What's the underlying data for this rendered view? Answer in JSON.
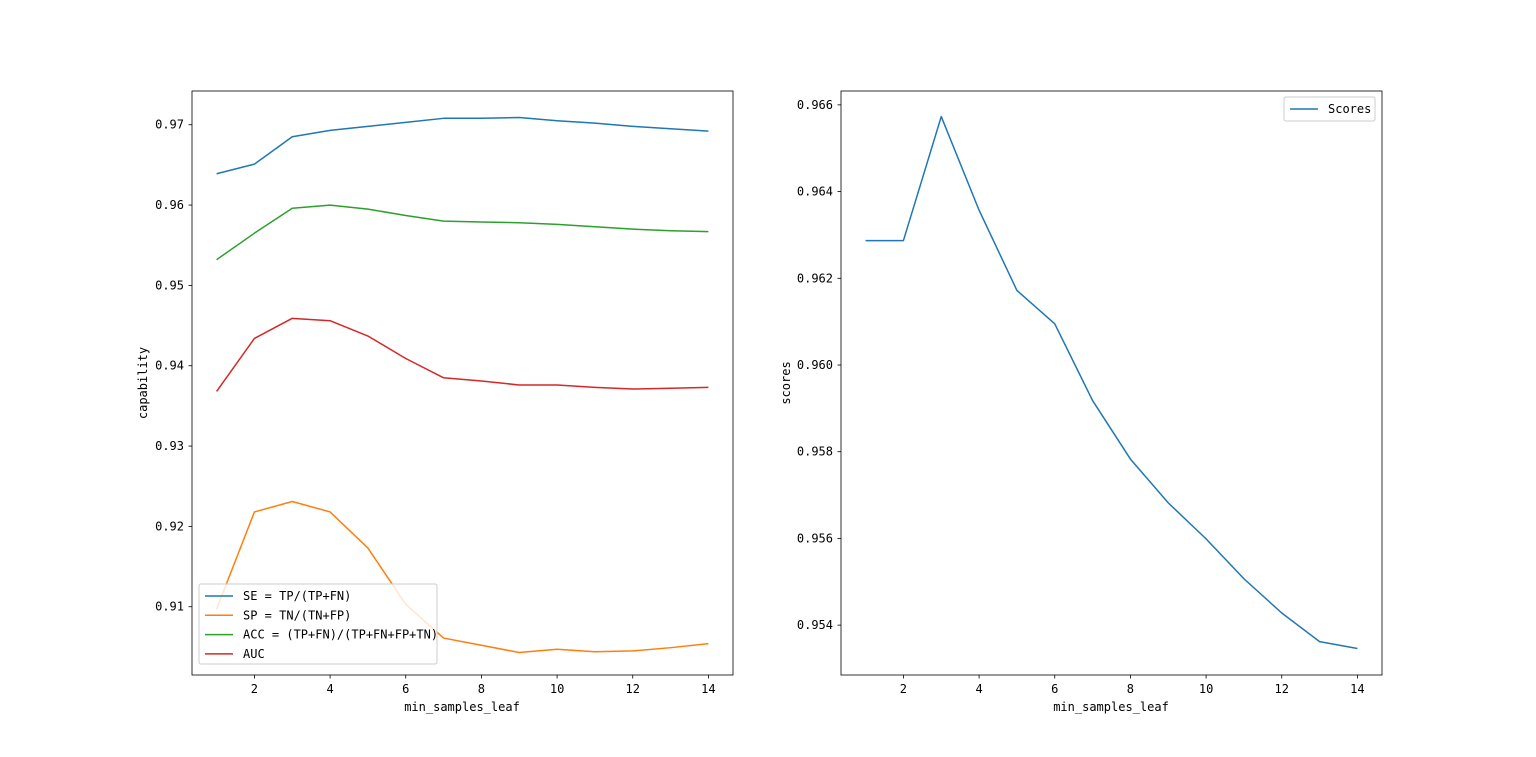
{
  "chart_data": [
    {
      "type": "line",
      "xlabel": "min_samples_leaf",
      "ylabel": "capability",
      "xlim": [
        0.35,
        14.65
      ],
      "ylim": [
        0.9015,
        0.9742
      ],
      "xticks": [
        2,
        4,
        6,
        8,
        10,
        12,
        14
      ],
      "yticks": [
        0.91,
        0.92,
        0.93,
        0.94,
        0.95,
        0.96,
        0.97
      ],
      "ytick_labels": [
        "0.91",
        "0.92",
        "0.93",
        "0.94",
        "0.95",
        "0.96",
        "0.97"
      ],
      "grid": false,
      "legend": "lower-left",
      "x": [
        1,
        2,
        3,
        4,
        5,
        6,
        7,
        8,
        9,
        10,
        11,
        12,
        13,
        14
      ],
      "series": [
        {
          "name": "SE = TP/(TP+FN)",
          "color": "#1f77b4",
          "values": [
            0.9639,
            0.9651,
            0.9685,
            0.9693,
            0.9698,
            0.9703,
            0.9708,
            0.9708,
            0.9709,
            0.9705,
            0.9702,
            0.9698,
            0.9695,
            0.9692
          ]
        },
        {
          "name": "SP = TN/(TN+FP)",
          "color": "#ff7f0e",
          "values": [
            0.9097,
            0.9218,
            0.9231,
            0.9218,
            0.9173,
            0.9103,
            0.9061,
            0.9052,
            0.9043,
            0.9047,
            0.9044,
            0.9045,
            0.9049,
            0.9054
          ]
        },
        {
          "name": "ACC = (TP+FN)/(TP+FN+FP+TN)",
          "color": "#2ca02c",
          "values": [
            0.9532,
            0.9565,
            0.9596,
            0.96,
            0.9595,
            0.9587,
            0.958,
            0.9579,
            0.9578,
            0.9576,
            0.9573,
            0.957,
            0.9568,
            0.9567
          ]
        },
        {
          "name": "AUC",
          "color": "#d62728",
          "values": [
            0.9368,
            0.9434,
            0.9459,
            0.9456,
            0.9437,
            0.9409,
            0.9385,
            0.9381,
            0.9376,
            0.9376,
            0.9373,
            0.9371,
            0.9372,
            0.9373
          ]
        }
      ]
    },
    {
      "type": "line",
      "xlabel": "min_samples_leaf",
      "ylabel": "scores",
      "xlim": [
        0.35,
        14.65
      ],
      "ylim": [
        0.95285,
        0.96632
      ],
      "xticks": [
        2,
        4,
        6,
        8,
        10,
        12,
        14
      ],
      "yticks": [
        0.954,
        0.956,
        0.958,
        0.96,
        0.962,
        0.964,
        0.966
      ],
      "ytick_labels": [
        "0.954",
        "0.956",
        "0.958",
        "0.960",
        "0.962",
        "0.964",
        "0.966"
      ],
      "grid": false,
      "legend": "top-right",
      "x": [
        1,
        2,
        3,
        4,
        5,
        6,
        7,
        8,
        9,
        10,
        11,
        12,
        13,
        14
      ],
      "series": [
        {
          "name": "Scores",
          "color": "#1f77b4",
          "values": [
            0.96287,
            0.96287,
            0.96573,
            0.96357,
            0.96172,
            0.96095,
            0.95918,
            0.95783,
            0.95682,
            0.95599,
            0.95507,
            0.95428,
            0.95362,
            0.95346
          ]
        }
      ]
    }
  ]
}
